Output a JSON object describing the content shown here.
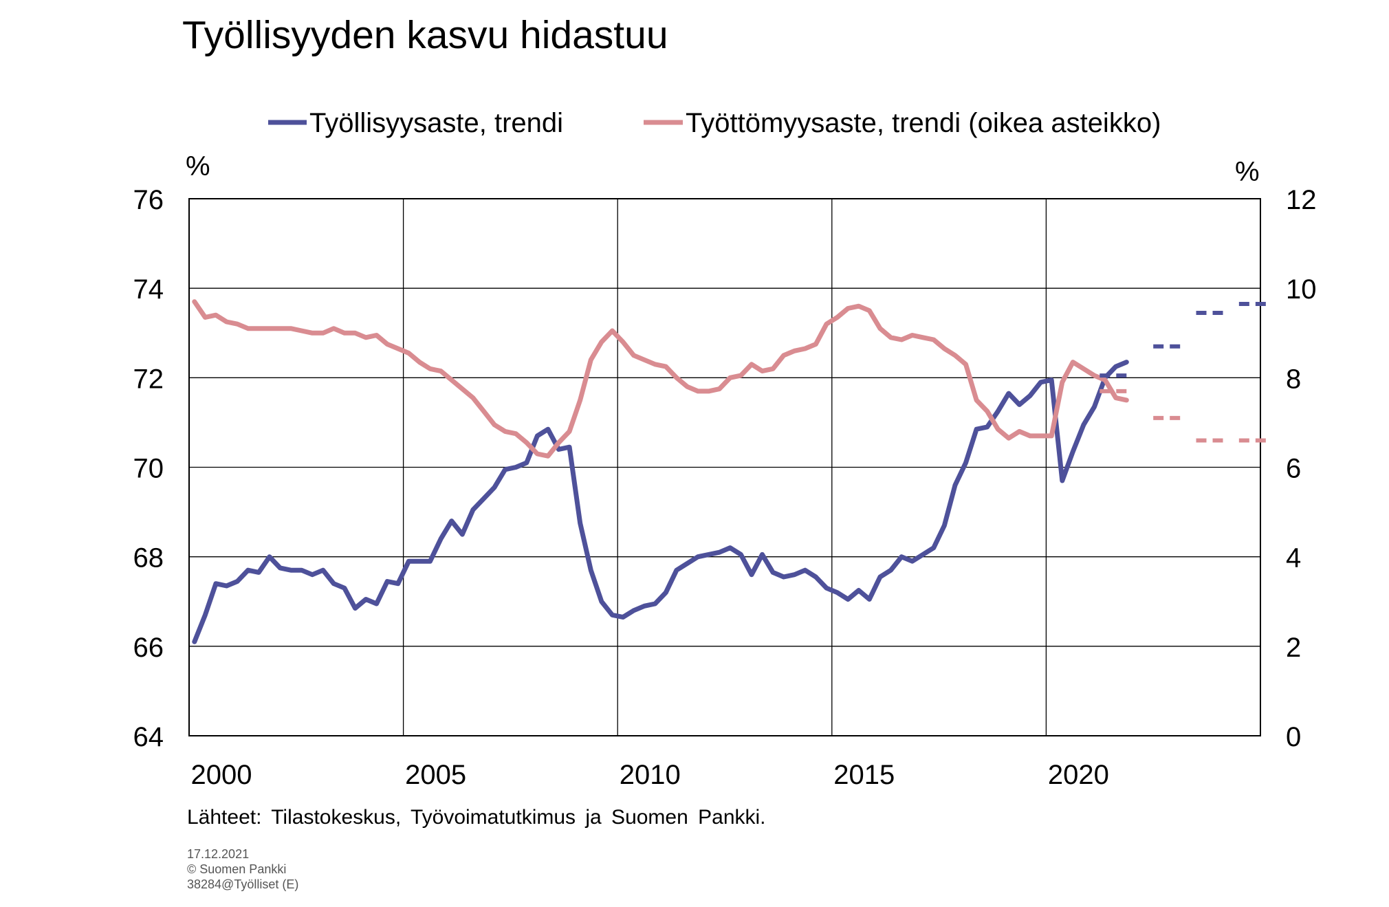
{
  "chart_data": {
    "type": "line",
    "title": "Työllisyyden kasvu hidastuu",
    "left_axis": {
      "unit": "%",
      "ylim": [
        64,
        76
      ],
      "ticks": [
        64,
        66,
        68,
        70,
        72,
        74,
        76
      ]
    },
    "right_axis": {
      "unit": "%",
      "ylim": [
        0,
        12
      ],
      "ticks": [
        0,
        2,
        4,
        6,
        8,
        10,
        12
      ]
    },
    "x_axis": {
      "xlim": [
        1999.75,
        2024.75
      ],
      "ticks": [
        2000,
        2005,
        2010,
        2015,
        2020
      ]
    },
    "grid": true,
    "legend_position": "top",
    "colors": {
      "employment": "#4e519a",
      "unemployment": "#d98c91",
      "grid": "#000000"
    },
    "series": [
      {
        "id": "employment",
        "name": "Työllisyysaste, trendi",
        "axis": "left",
        "x": [
          1999.875,
          2000.125,
          2000.375,
          2000.625,
          2000.875,
          2001.125,
          2001.375,
          2001.625,
          2001.875,
          2002.125,
          2002.375,
          2002.625,
          2002.875,
          2003.125,
          2003.375,
          2003.625,
          2003.875,
          2004.125,
          2004.375,
          2004.625,
          2004.875,
          2005.125,
          2005.375,
          2005.625,
          2005.875,
          2006.125,
          2006.375,
          2006.625,
          2006.875,
          2007.125,
          2007.375,
          2007.625,
          2007.875,
          2008.125,
          2008.375,
          2008.625,
          2008.875,
          2009.125,
          2009.375,
          2009.625,
          2009.875,
          2010.125,
          2010.375,
          2010.625,
          2010.875,
          2011.125,
          2011.375,
          2011.625,
          2011.875,
          2012.125,
          2012.375,
          2012.625,
          2012.875,
          2013.125,
          2013.375,
          2013.625,
          2013.875,
          2014.125,
          2014.375,
          2014.625,
          2014.875,
          2015.125,
          2015.375,
          2015.625,
          2015.875,
          2016.125,
          2016.375,
          2016.625,
          2016.875,
          2017.125,
          2017.375,
          2017.625,
          2017.875,
          2018.125,
          2018.375,
          2018.625,
          2018.875,
          2019.125,
          2019.375,
          2019.625,
          2019.875,
          2020.125,
          2020.375,
          2020.625,
          2020.875,
          2021.125,
          2021.375,
          2021.625
        ],
        "values": [
          66.1,
          66.7,
          67.4,
          67.35,
          67.45,
          67.7,
          67.65,
          68.0,
          67.75,
          67.7,
          67.7,
          67.6,
          67.7,
          67.4,
          67.3,
          66.85,
          67.05,
          66.95,
          67.45,
          67.4,
          67.9,
          67.9,
          67.9,
          68.4,
          68.8,
          68.5,
          69.05,
          69.3,
          69.55,
          69.95,
          70.0,
          70.1,
          70.7,
          70.85,
          70.4,
          70.45,
          68.75,
          67.7,
          67.0,
          66.7,
          66.65,
          66.8,
          66.9,
          66.95,
          67.2,
          67.7,
          67.85,
          68.0,
          68.05,
          68.1,
          68.2,
          68.05,
          67.6,
          68.05,
          67.65,
          67.55,
          67.6,
          67.7,
          67.55,
          67.3,
          67.2,
          67.05,
          67.25,
          67.05,
          67.55,
          67.7,
          68.0,
          67.9,
          68.05,
          68.2,
          68.7,
          69.6,
          70.1,
          70.85,
          70.9,
          71.25,
          71.65,
          71.4,
          71.6,
          71.9,
          71.95,
          69.7,
          70.35,
          70.95,
          71.35,
          72.0,
          72.25,
          72.35
        ]
      },
      {
        "id": "unemployment",
        "name": "Työttömyysaste, trendi (oikea asteikko)",
        "axis": "right",
        "x": [
          1999.875,
          2000.125,
          2000.375,
          2000.625,
          2000.875,
          2001.125,
          2001.375,
          2001.625,
          2001.875,
          2002.125,
          2002.375,
          2002.625,
          2002.875,
          2003.125,
          2003.375,
          2003.625,
          2003.875,
          2004.125,
          2004.375,
          2004.625,
          2004.875,
          2005.125,
          2005.375,
          2005.625,
          2005.875,
          2006.125,
          2006.375,
          2006.625,
          2006.875,
          2007.125,
          2007.375,
          2007.625,
          2007.875,
          2008.125,
          2008.375,
          2008.625,
          2008.875,
          2009.125,
          2009.375,
          2009.625,
          2009.875,
          2010.125,
          2010.375,
          2010.625,
          2010.875,
          2011.125,
          2011.375,
          2011.625,
          2011.875,
          2012.125,
          2012.375,
          2012.625,
          2012.875,
          2013.125,
          2013.375,
          2013.625,
          2013.875,
          2014.125,
          2014.375,
          2014.625,
          2014.875,
          2015.125,
          2015.375,
          2015.625,
          2015.875,
          2016.125,
          2016.375,
          2016.625,
          2016.875,
          2017.125,
          2017.375,
          2017.625,
          2017.875,
          2018.125,
          2018.375,
          2018.625,
          2018.875,
          2019.125,
          2019.375,
          2019.625,
          2019.875,
          2020.125,
          2020.375,
          2020.625,
          2020.875,
          2021.125,
          2021.375,
          2021.625
        ],
        "values": [
          9.7,
          9.35,
          9.4,
          9.25,
          9.2,
          9.1,
          9.1,
          9.1,
          9.1,
          9.1,
          9.05,
          9.0,
          9.0,
          9.1,
          9.0,
          9.0,
          8.9,
          8.95,
          8.75,
          8.65,
          8.55,
          8.35,
          8.2,
          8.15,
          7.95,
          7.75,
          7.55,
          7.25,
          6.95,
          6.8,
          6.75,
          6.55,
          6.3,
          6.25,
          6.55,
          6.8,
          7.5,
          8.4,
          8.8,
          9.05,
          8.8,
          8.5,
          8.4,
          8.3,
          8.25,
          8.0,
          7.8,
          7.7,
          7.7,
          7.75,
          8.0,
          8.05,
          8.3,
          8.15,
          8.2,
          8.5,
          8.6,
          8.65,
          8.75,
          9.2,
          9.35,
          9.55,
          9.6,
          9.5,
          9.1,
          8.9,
          8.85,
          8.95,
          8.9,
          8.85,
          8.65,
          8.5,
          8.3,
          7.5,
          7.25,
          6.85,
          6.65,
          6.8,
          6.7,
          6.7,
          6.7,
          7.9,
          8.35,
          8.2,
          8.05,
          7.95,
          7.55,
          7.5
        ]
      },
      {
        "id": "employment-forecast",
        "axis": "left",
        "forecast": true,
        "segments": [
          {
            "x": [
              2021.0,
              2021.75
            ],
            "value": 72.05
          },
          {
            "x": [
              2022.25,
              2023.0
            ],
            "value": 72.7
          },
          {
            "x": [
              2023.25,
              2024.0
            ],
            "value": 73.45
          },
          {
            "x": [
              2024.25,
              2025.0
            ],
            "value": 73.65
          }
        ]
      },
      {
        "id": "unemployment-forecast",
        "axis": "right",
        "forecast": true,
        "segments": [
          {
            "x": [
              2021.0,
              2021.75
            ],
            "value": 7.7
          },
          {
            "x": [
              2022.25,
              2023.0
            ],
            "value": 7.1
          },
          {
            "x": [
              2023.25,
              2024.0
            ],
            "value": 6.6
          },
          {
            "x": [
              2024.25,
              2025.0
            ],
            "value": 6.6
          }
        ]
      }
    ]
  },
  "source": "Lähteet: Tilastokeskus, Työvoimatutkimus ja Suomen Pankki.",
  "footer": {
    "date": "17.12.2021",
    "copyright": "© Suomen Pankki",
    "code": "38284@Työlliset (E)"
  }
}
